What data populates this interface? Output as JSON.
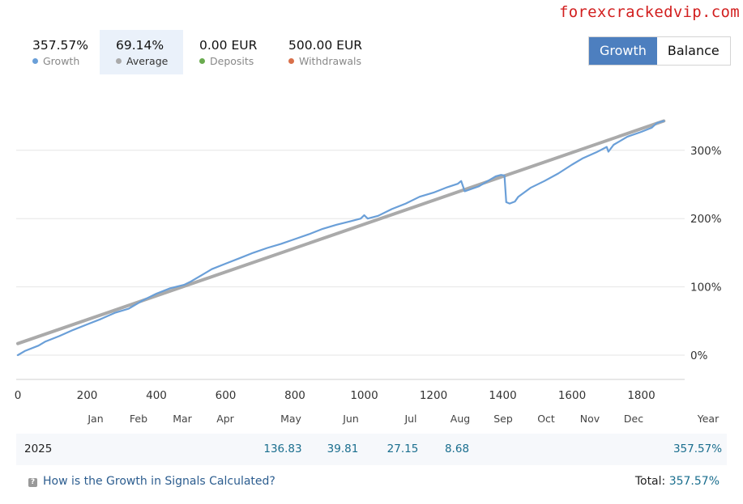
{
  "watermark": "forexcrackedvip.com",
  "stats": [
    {
      "value": "357.57%",
      "label": "Growth",
      "color": "#6a9fd8",
      "active": false
    },
    {
      "value": "69.14%",
      "label": "Average",
      "color": "#aaaaaa",
      "active": true
    },
    {
      "value": "0.00 EUR",
      "label": "Deposits",
      "color": "#6aab4f",
      "active": false
    },
    {
      "value": "500.00 EUR",
      "label": "Withdrawals",
      "color": "#d9704a",
      "active": false
    }
  ],
  "toggle": {
    "growth_label": "Growth",
    "balance_label": "Balance",
    "selected": "Growth"
  },
  "colors": {
    "growth_line": "#6a9fd8",
    "average_line": "#aaaaaa",
    "accent": "#4d7fbf",
    "value_text": "#1a6e8e"
  },
  "months": [
    "Jan",
    "Feb",
    "Mar",
    "Apr",
    "May",
    "Jun",
    "Jul",
    "Aug",
    "Sep",
    "Oct",
    "Nov",
    "Dec"
  ],
  "year_row": {
    "year_header": "Year",
    "year": "2025",
    "values": {
      "May": "136.83",
      "Jun": "39.81",
      "Jul": "27.15",
      "Aug": "8.68"
    },
    "year_total": "357.57%"
  },
  "footer": {
    "link_text": "How is the Growth in Signals Calculated?",
    "total_label": "Total:",
    "total_value": "357.57%"
  },
  "chart_data": {
    "type": "line",
    "xlim": [
      0,
      1900
    ],
    "ylim": [
      -35,
      360
    ],
    "x_ticks": [
      0,
      200,
      400,
      600,
      800,
      1000,
      1200,
      1400,
      1600,
      1800
    ],
    "y_ticks": [
      0,
      100,
      200,
      300
    ],
    "y_tick_labels": [
      "0%",
      "100%",
      "200%",
      "300%"
    ],
    "grid": true,
    "series": [
      {
        "name": "Growth",
        "color": "#6a9fd8",
        "points": [
          [
            0,
            0
          ],
          [
            20,
            6
          ],
          [
            60,
            14
          ],
          [
            80,
            20
          ],
          [
            120,
            28
          ],
          [
            160,
            37
          ],
          [
            200,
            45
          ],
          [
            240,
            53
          ],
          [
            280,
            62
          ],
          [
            320,
            68
          ],
          [
            360,
            80
          ],
          [
            400,
            90
          ],
          [
            440,
            98
          ],
          [
            480,
            103
          ],
          [
            500,
            108
          ],
          [
            530,
            117
          ],
          [
            560,
            126
          ],
          [
            600,
            134
          ],
          [
            640,
            142
          ],
          [
            680,
            150
          ],
          [
            720,
            157
          ],
          [
            760,
            163
          ],
          [
            800,
            170
          ],
          [
            840,
            177
          ],
          [
            880,
            185
          ],
          [
            920,
            191
          ],
          [
            960,
            196
          ],
          [
            990,
            200
          ],
          [
            1000,
            205
          ],
          [
            1010,
            200
          ],
          [
            1040,
            204
          ],
          [
            1080,
            214
          ],
          [
            1120,
            222
          ],
          [
            1160,
            232
          ],
          [
            1200,
            238
          ],
          [
            1240,
            246
          ],
          [
            1270,
            251
          ],
          [
            1280,
            255
          ],
          [
            1290,
            240
          ],
          [
            1330,
            247
          ],
          [
            1360,
            256
          ],
          [
            1380,
            262
          ],
          [
            1395,
            264
          ],
          [
            1405,
            263
          ],
          [
            1410,
            224
          ],
          [
            1420,
            222
          ],
          [
            1435,
            225
          ],
          [
            1445,
            232
          ],
          [
            1480,
            245
          ],
          [
            1520,
            255
          ],
          [
            1560,
            266
          ],
          [
            1600,
            279
          ],
          [
            1630,
            288
          ],
          [
            1670,
            297
          ],
          [
            1700,
            305
          ],
          [
            1705,
            298
          ],
          [
            1720,
            308
          ],
          [
            1760,
            320
          ],
          [
            1800,
            327
          ],
          [
            1830,
            333
          ],
          [
            1845,
            340
          ],
          [
            1865,
            343
          ]
        ]
      },
      {
        "name": "Average",
        "color": "#aaaaaa",
        "points": [
          [
            0,
            17
          ],
          [
            1865,
            343
          ]
        ]
      }
    ]
  }
}
